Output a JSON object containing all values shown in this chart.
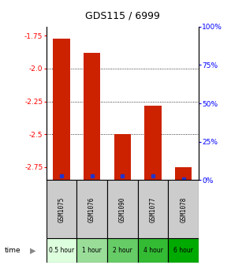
{
  "title": "GDS115 / 6999",
  "samples": [
    "GSM1075",
    "GSM1076",
    "GSM1090",
    "GSM1077",
    "GSM1078"
  ],
  "time_labels": [
    "0.5 hour",
    "1 hour",
    "2 hour",
    "4 hour",
    "6 hour"
  ],
  "log_ratios": [
    -1.77,
    -1.88,
    -2.5,
    -2.28,
    -2.75
  ],
  "percentile_ranks": [
    3,
    3,
    3,
    3,
    1
  ],
  "ylim": [
    -2.85,
    -1.68
  ],
  "yticks": [
    -1.75,
    -2.0,
    -2.25,
    -2.5,
    -2.75
  ],
  "right_ticks_pct": [
    0,
    25,
    50,
    75,
    100
  ],
  "grid_at": [
    -2.0,
    -2.25,
    -2.5
  ],
  "bar_color": "#cc2200",
  "dot_color": "#2233cc",
  "bar_width": 0.55,
  "sample_bg": "#cccccc",
  "time_bg_colors": [
    "#ddffdd",
    "#99dd99",
    "#66cc66",
    "#33bb33",
    "#00aa00"
  ],
  "title_fontsize": 9,
  "tick_fontsize": 6.5,
  "sample_fontsize": 5.5,
  "time_fontsize": 5.5
}
